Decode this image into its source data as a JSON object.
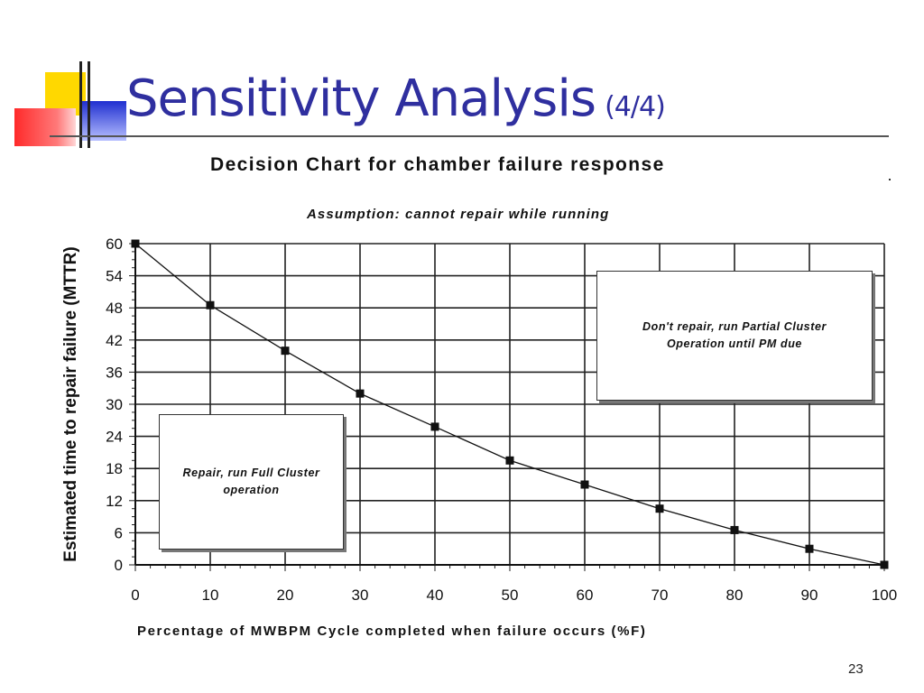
{
  "slide": {
    "title": "Sensitivity Analysis",
    "title_suffix": "(4/4)",
    "page_number": "23",
    "title_color": "#2f2f9f"
  },
  "chart_data": {
    "type": "line",
    "title": "Decision Chart for chamber failure response",
    "subtitle": "Assumption: cannot repair while running",
    "xlabel": "Percentage of MWBPM Cycle completed when failure occurs (%F)",
    "ylabel": "Estimated time to repair failure (MTTR)",
    "xlim": [
      0,
      100
    ],
    "ylim": [
      0,
      60
    ],
    "x_ticks": [
      0,
      10,
      20,
      30,
      40,
      50,
      60,
      70,
      80,
      90,
      100
    ],
    "y_ticks": [
      0,
      6,
      12,
      18,
      24,
      30,
      36,
      42,
      48,
      54,
      60
    ],
    "grid": true,
    "series": [
      {
        "x": [
          0,
          10,
          20,
          30,
          40,
          50,
          60,
          70,
          80,
          90,
          100
        ],
        "y": [
          60,
          48.5,
          40,
          32,
          25.8,
          19.5,
          15,
          10.5,
          6.5,
          3,
          0
        ]
      }
    ],
    "annotations": [
      "Don't repair, run Partial Cluster Operation until PM due",
      "Repair, run Full Cluster operation"
    ]
  }
}
